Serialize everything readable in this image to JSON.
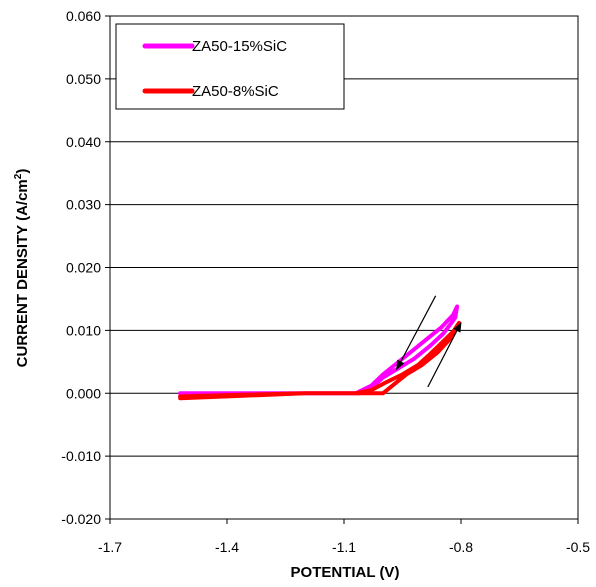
{
  "chart_data": {
    "type": "line",
    "title": "",
    "xlabel": "POTENTIAL (V)",
    "ylabel_main": "CURRENT DENSITY (A/cm",
    "ylabel_sup": "2",
    "ylabel_close": ")",
    "xlim": [
      -1.7,
      -0.5
    ],
    "ylim": [
      -0.02,
      0.06
    ],
    "x_ticks": [
      -1.7,
      -1.4,
      -1.1,
      -0.8,
      -0.5
    ],
    "x_tick_labels": [
      "-1.7",
      "-1.4",
      "-1.1",
      "-0.8",
      "-0.5"
    ],
    "y_ticks": [
      -0.02,
      -0.01,
      0.0,
      0.01,
      0.02,
      0.03,
      0.04,
      0.05,
      0.06
    ],
    "y_tick_labels": [
      "-0.020",
      "-0.010",
      "0.000",
      "0.010",
      "0.020",
      "0.030",
      "0.040",
      "0.050",
      "0.060"
    ],
    "grid": "horizontal",
    "legend_position": "top-left",
    "series": [
      {
        "name": "ZA50-15%SiC",
        "color": "#ff00ff",
        "x": [
          -1.52,
          -1.4,
          -1.2,
          -1.06,
          -1.03,
          -1.0,
          -0.96,
          -0.92,
          -0.88,
          -0.845,
          -0.815,
          -0.81,
          -0.82,
          -0.85,
          -0.89,
          -0.93,
          -0.97,
          -1.0,
          -1.03,
          -1.07,
          -1.2,
          -1.4,
          -1.52
        ],
        "y": [
          0.0,
          0.0,
          0.0,
          0.0,
          0.0008,
          0.0025,
          0.004,
          0.0055,
          0.0075,
          0.0095,
          0.012,
          0.0138,
          0.0125,
          0.0105,
          0.0085,
          0.0065,
          0.0045,
          0.003,
          0.0012,
          0.0,
          0.0,
          0.0,
          -0.0005
        ]
      },
      {
        "name": "ZA50-8%SiC",
        "color": "#ff0000",
        "x": [
          -1.52,
          -1.4,
          -1.2,
          -1.05,
          -1.0,
          -0.97,
          -0.94,
          -0.9,
          -0.86,
          -0.83,
          -0.81,
          -0.805,
          -0.82,
          -0.85,
          -0.88,
          -0.91,
          -0.95,
          -0.99,
          -1.03,
          -1.07,
          -1.2,
          -1.4,
          -1.52
        ],
        "y": [
          -0.0008,
          -0.0005,
          0.0,
          0.0,
          0.0,
          0.0015,
          0.003,
          0.0045,
          0.0065,
          0.0085,
          0.0105,
          0.0112,
          0.0098,
          0.008,
          0.0062,
          0.0045,
          0.003,
          0.0018,
          0.0005,
          0.0,
          0.0,
          -0.0003,
          -0.0005
        ]
      }
    ],
    "annotations": [
      {
        "type": "arrow",
        "direction": "down-left",
        "from": [
          -0.865,
          0.0155
        ],
        "to": [
          -0.965,
          0.0038
        ]
      },
      {
        "type": "arrow",
        "direction": "up-right",
        "from": [
          -0.885,
          0.001
        ],
        "to": [
          -0.8,
          0.0112
        ]
      }
    ]
  }
}
